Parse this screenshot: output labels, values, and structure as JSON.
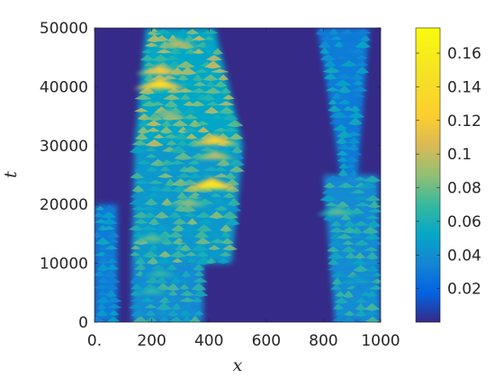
{
  "chart_data": {
    "type": "heatmap",
    "xlabel": "x",
    "ylabel": "t",
    "xlim": [
      0,
      1000
    ],
    "ylim": [
      0,
      50000
    ],
    "x_ticks": [
      0,
      200,
      400,
      600,
      800,
      1000
    ],
    "x_tick_labels": [
      "0.",
      "200",
      "400",
      "600",
      "800",
      "1000"
    ],
    "y_ticks": [
      0,
      10000,
      20000,
      30000,
      40000,
      50000
    ],
    "y_tick_labels": [
      "0",
      "10000",
      "20000",
      "30000",
      "40000",
      "50000"
    ],
    "colorbar": {
      "colormap": "parula",
      "range": [
        0,
        0.175
      ],
      "ticks": [
        0.02,
        0.04,
        0.06,
        0.08,
        0.1,
        0.12,
        0.14,
        0.16
      ],
      "tick_labels": [
        "0.02",
        "0.04",
        "0.06",
        "0.08",
        "0.1",
        "0.12",
        "0.14",
        "0.16"
      ]
    },
    "background_value": 0.002,
    "bands": [
      {
        "t_range": [
          0,
          20000
        ],
        "x_left": [
          0,
          0
        ],
        "x_right": [
          80,
          80
        ],
        "typical_value": 0.04
      },
      {
        "t_range": [
          0,
          10000
        ],
        "x_left": [
          130,
          130
        ],
        "x_right": [
          380,
          380
        ],
        "typical_value": 0.05
      },
      {
        "t_range": [
          10000,
          30000
        ],
        "x_left": [
          130,
          140
        ],
        "x_right": [
          480,
          520
        ],
        "typical_value": 0.06
      },
      {
        "t_range": [
          30000,
          50000
        ],
        "x_left": [
          140,
          180
        ],
        "x_right": [
          520,
          420
        ],
        "typical_value": 0.07
      },
      {
        "t_range": [
          0,
          25000
        ],
        "x_left": [
          840,
          800
        ],
        "x_right": [
          1000,
          990
        ],
        "typical_value": 0.05
      },
      {
        "t_range": [
          25000,
          50000
        ],
        "x_left": [
          860,
          780
        ],
        "x_right": [
          920,
          960
        ],
        "typical_value": 0.04
      }
    ],
    "peaks": [
      {
        "x": 230,
        "t": 40000,
        "value": 0.145
      },
      {
        "x": 410,
        "t": 23000,
        "value": 0.155
      },
      {
        "x": 420,
        "t": 30500,
        "value": 0.13
      },
      {
        "x": 230,
        "t": 42500,
        "value": 0.12
      },
      {
        "x": 290,
        "t": 47000,
        "value": 0.1
      },
      {
        "x": 420,
        "t": 28000,
        "value": 0.1
      },
      {
        "x": 260,
        "t": 35000,
        "value": 0.09
      },
      {
        "x": 330,
        "t": 20000,
        "value": 0.09
      },
      {
        "x": 200,
        "t": 14000,
        "value": 0.08
      },
      {
        "x": 230,
        "t": 8000,
        "value": 0.07
      },
      {
        "x": 200,
        "t": 5000,
        "value": 0.07
      },
      {
        "x": 850,
        "t": 18500,
        "value": 0.08
      },
      {
        "x": 920,
        "t": 7000,
        "value": 0.05
      }
    ]
  }
}
